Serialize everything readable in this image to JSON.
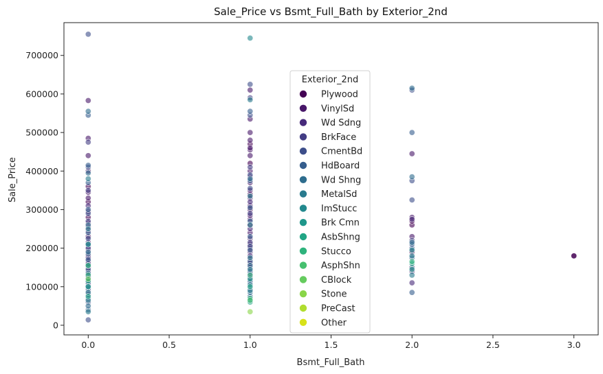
{
  "chart_data": {
    "type": "scatter",
    "title": "Sale_Price vs Bsmt_Full_Bath by Exterior_2nd",
    "xlabel": "Bsmt_Full_Bath",
    "ylabel": "Sale_Price",
    "xlim": [
      -0.15,
      3.15
    ],
    "ylim": [
      -25000,
      785000
    ],
    "xticks": [
      0.0,
      0.5,
      1.0,
      1.5,
      2.0,
      2.5,
      3.0
    ],
    "xtick_labels": [
      "0.0",
      "0.5",
      "1.0",
      "1.5",
      "2.0",
      "2.5",
      "3.0"
    ],
    "yticks": [
      0,
      100000,
      200000,
      300000,
      400000,
      500000,
      600000,
      700000
    ],
    "ytick_labels": [
      "0",
      "100000",
      "200000",
      "300000",
      "400000",
      "500000",
      "600000",
      "700000"
    ],
    "grid": false,
    "legend": {
      "title": "Exterior_2nd",
      "placement": "upper-center",
      "entries": [
        {
          "name": "Plywood",
          "color": "#440154"
        },
        {
          "name": "VinylSd",
          "color": "#481769"
        },
        {
          "name": "Wd Sdng",
          "color": "#472a7a"
        },
        {
          "name": "BrkFace",
          "color": "#433d84"
        },
        {
          "name": "CmentBd",
          "color": "#3d4e8a"
        },
        {
          "name": "HdBoard",
          "color": "#355e8d"
        },
        {
          "name": "Wd Shng",
          "color": "#2e6d8e"
        },
        {
          "name": "MetalSd",
          "color": "#297b8e"
        },
        {
          "name": "ImStucc",
          "color": "#23898e"
        },
        {
          "name": "Brk Cmn",
          "color": "#1f978b"
        },
        {
          "name": "AsbShng",
          "color": "#21a585"
        },
        {
          "name": "Stucco",
          "color": "#2eb37c"
        },
        {
          "name": "AsphShn",
          "color": "#46c06f"
        },
        {
          "name": "CBlock",
          "color": "#65cb5e"
        },
        {
          "name": "Stone",
          "color": "#89d548"
        },
        {
          "name": "PreCast",
          "color": "#b0dd2f"
        },
        {
          "name": "Other",
          "color": "#d8e219"
        }
      ]
    },
    "series": [
      {
        "name": "Plywood",
        "points": [
          [
            0,
            150000
          ],
          [
            0,
            180000
          ],
          [
            0,
            230000
          ],
          [
            0,
            280000
          ],
          [
            0,
            320000
          ],
          [
            0,
            360000
          ],
          [
            1,
            160000
          ],
          [
            1,
            210000
          ],
          [
            1,
            260000
          ],
          [
            1,
            300000
          ],
          [
            1,
            340000
          ],
          [
            1,
            420000
          ],
          [
            1,
            470000
          ],
          [
            2,
            190000
          ],
          [
            2,
            260000
          ],
          [
            2,
            270000
          ],
          [
            3,
            180000
          ]
        ]
      },
      {
        "name": "VinylSd",
        "points": [
          [
            0,
            120000
          ],
          [
            0,
            140000
          ],
          [
            0,
            165000
          ],
          [
            0,
            195000
          ],
          [
            0,
            215000
          ],
          [
            0,
            245000
          ],
          [
            0,
            265000
          ],
          [
            0,
            295000
          ],
          [
            0,
            330000
          ],
          [
            0,
            345000
          ],
          [
            0,
            400000
          ],
          [
            0,
            440000
          ],
          [
            0,
            485000
          ],
          [
            0,
            583000
          ],
          [
            1,
            170000
          ],
          [
            1,
            190000
          ],
          [
            1,
            200000
          ],
          [
            1,
            225000
          ],
          [
            1,
            240000
          ],
          [
            1,
            275000
          ],
          [
            1,
            285000
          ],
          [
            1,
            310000
          ],
          [
            1,
            330000
          ],
          [
            1,
            350000
          ],
          [
            1,
            370000
          ],
          [
            1,
            385000
          ],
          [
            1,
            400000
          ],
          [
            1,
            440000
          ],
          [
            1,
            455000
          ],
          [
            1,
            460000
          ],
          [
            1,
            480000
          ],
          [
            1,
            500000
          ],
          [
            1,
            535000
          ],
          [
            1,
            610000
          ],
          [
            2,
            230000
          ],
          [
            2,
            280000
          ],
          [
            2,
            445000
          ]
        ]
      },
      {
        "name": "Wd Sdng",
        "points": [
          [
            0,
            90000
          ],
          [
            0,
            105000
          ],
          [
            0,
            130000
          ],
          [
            0,
            160000
          ],
          [
            0,
            175000
          ],
          [
            0,
            205000
          ],
          [
            0,
            255000
          ],
          [
            0,
            310000
          ],
          [
            1,
            125000
          ],
          [
            1,
            150000
          ],
          [
            1,
            180000
          ],
          [
            1,
            250000
          ],
          [
            1,
            320000
          ],
          [
            2,
            110000
          ],
          [
            2,
            140000
          ],
          [
            2,
            275000
          ]
        ]
      },
      {
        "name": "BrkFace",
        "points": [
          [
            0,
            80000
          ],
          [
            0,
            125000
          ],
          [
            0,
            200000
          ],
          [
            0,
            270000
          ],
          [
            0,
            350000
          ],
          [
            0,
            475000
          ],
          [
            1,
            135000
          ],
          [
            1,
            215000
          ],
          [
            1,
            290000
          ],
          [
            1,
            410000
          ],
          [
            1,
            590000
          ],
          [
            2,
            150000
          ],
          [
            2,
            220000
          ]
        ]
      },
      {
        "name": "CmentBd",
        "points": [
          [
            0,
            14000
          ],
          [
            0,
            60000
          ],
          [
            0,
            110000
          ],
          [
            0,
            225000
          ],
          [
            0,
            290000
          ],
          [
            0,
            410000
          ],
          [
            0,
            755000
          ],
          [
            1,
            110000
          ],
          [
            1,
            205000
          ],
          [
            1,
            355000
          ],
          [
            1,
            390000
          ],
          [
            1,
            545000
          ],
          [
            1,
            625000
          ],
          [
            2,
            200000
          ],
          [
            2,
            325000
          ],
          [
            2,
            375000
          ],
          [
            2,
            610000
          ]
        ]
      },
      {
        "name": "HdBoard",
        "points": [
          [
            0,
            40000
          ],
          [
            0,
            70000
          ],
          [
            0,
            95000
          ],
          [
            0,
            115000
          ],
          [
            0,
            145000
          ],
          [
            0,
            170000
          ],
          [
            0,
            185000
          ],
          [
            0,
            240000
          ],
          [
            0,
            300000
          ],
          [
            0,
            370000
          ],
          [
            0,
            415000
          ],
          [
            0,
            545000
          ],
          [
            1,
            75000
          ],
          [
            1,
            95000
          ],
          [
            1,
            115000
          ],
          [
            1,
            140000
          ],
          [
            1,
            165000
          ],
          [
            1,
            195000
          ],
          [
            1,
            230000
          ],
          [
            1,
            270000
          ],
          [
            1,
            305000
          ],
          [
            1,
            375000
          ],
          [
            1,
            555000
          ],
          [
            2,
            85000
          ],
          [
            2,
            175000
          ],
          [
            2,
            210000
          ],
          [
            2,
            500000
          ]
        ]
      },
      {
        "name": "Wd Shng",
        "points": [
          [
            0,
            50000
          ],
          [
            0,
            135000
          ],
          [
            0,
            190000
          ],
          [
            0,
            260000
          ],
          [
            0,
            395000
          ],
          [
            0,
            555000
          ],
          [
            1,
            85000
          ],
          [
            1,
            155000
          ],
          [
            1,
            380000
          ],
          [
            2,
            215000
          ],
          [
            2,
            385000
          ],
          [
            2,
            615000
          ]
        ]
      },
      {
        "name": "MetalSd",
        "points": [
          [
            0,
            35000
          ],
          [
            0,
            65000
          ],
          [
            0,
            85000
          ],
          [
            0,
            100000
          ],
          [
            0,
            155000
          ],
          [
            0,
            210000
          ],
          [
            0,
            250000
          ],
          [
            0,
            380000
          ],
          [
            1,
            65000
          ],
          [
            1,
            90000
          ],
          [
            1,
            105000
          ],
          [
            1,
            145000
          ],
          [
            1,
            175000
          ],
          [
            1,
            260000
          ],
          [
            1,
            335000
          ],
          [
            1,
            585000
          ],
          [
            2,
            130000
          ],
          [
            2,
            180000
          ]
        ]
      },
      {
        "name": "ImStucc",
        "points": [
          [
            0,
            210000
          ],
          [
            1,
            745000
          ],
          [
            2,
            195000
          ]
        ]
      },
      {
        "name": "Brk Cmn",
        "points": [
          [
            0,
            100000
          ],
          [
            1,
            120000
          ],
          [
            2,
            145000
          ]
        ]
      },
      {
        "name": "AsbShng",
        "points": [
          [
            0,
            75000
          ],
          [
            0,
            115000
          ],
          [
            1,
            60000
          ],
          [
            1,
            100000
          ],
          [
            2,
            160000
          ]
        ]
      },
      {
        "name": "Stucco",
        "points": [
          [
            0,
            130000
          ],
          [
            0,
            155000
          ],
          [
            1,
            70000
          ],
          [
            1,
            130000
          ],
          [
            2,
            165000
          ]
        ]
      },
      {
        "name": "AsphShn",
        "points": [
          [
            1,
            65000
          ]
        ]
      },
      {
        "name": "CBlock",
        "points": [
          [
            0,
            120000
          ]
        ]
      },
      {
        "name": "Stone",
        "points": [
          [
            1,
            35000
          ]
        ]
      },
      {
        "name": "PreCast",
        "points": []
      },
      {
        "name": "Other",
        "points": []
      }
    ]
  }
}
